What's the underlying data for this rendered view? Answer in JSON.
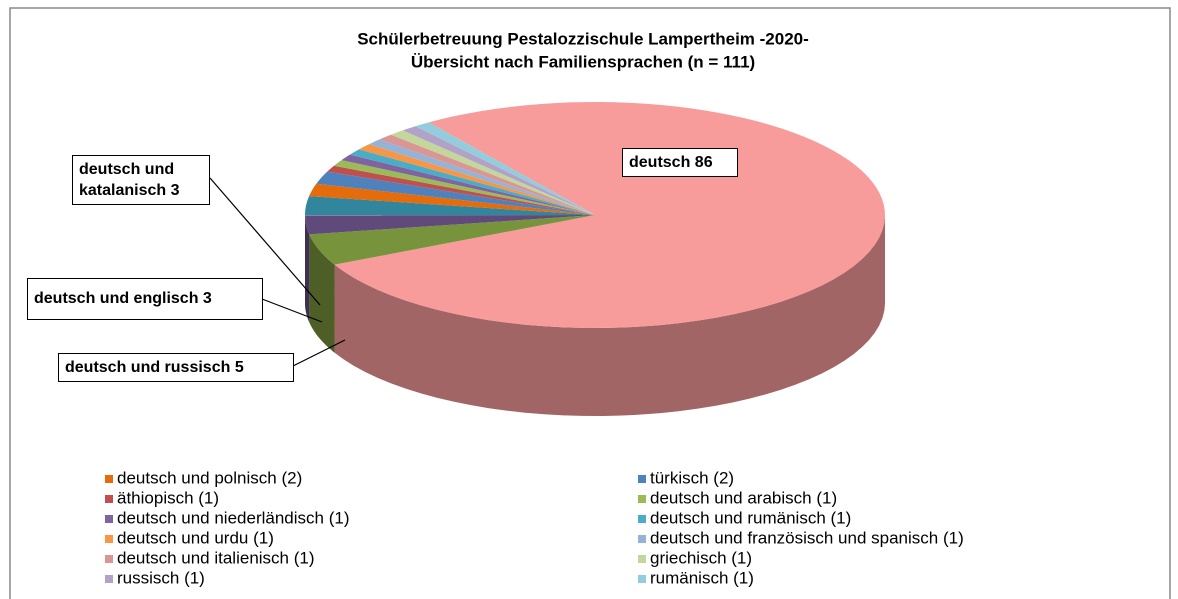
{
  "chart_data": {
    "type": "pie3d",
    "title": "Schülerbetreuung Pestalozzischule Lampertheim -2020-",
    "subtitle": "Übersicht nach Familiensprachen (n = 111)",
    "slices": [
      {
        "label": "deutsch 86",
        "value": 86,
        "color": "#f79b9b"
      },
      {
        "label": "deutsch und russisch 5",
        "value": 5,
        "color": "#77933c"
      },
      {
        "label": "deutsch  und englisch 3",
        "value": 3,
        "color": "#604a7b"
      },
      {
        "label": "deutsch und katalanisch 3",
        "value": 3,
        "color": "#31859c"
      },
      {
        "legend": "deutsch und polnisch (2)",
        "value": 2,
        "color": "#e46c0a"
      },
      {
        "legend": "türkisch (2)",
        "value": 2,
        "color": "#4f81bd"
      },
      {
        "legend": "äthiopisch (1)",
        "value": 1,
        "color": "#c0504d"
      },
      {
        "legend": "deutsch und arabisch (1)",
        "value": 1,
        "color": "#9bbb59"
      },
      {
        "legend": "deutsch und niederländisch (1)",
        "value": 1,
        "color": "#8064a2"
      },
      {
        "legend": "deutsch und rumänisch (1)",
        "value": 1,
        "color": "#4bacc6"
      },
      {
        "legend": "deutsch und urdu (1)",
        "value": 1,
        "color": "#f79646"
      },
      {
        "legend": "deutsch und französisch und spanisch (1)",
        "value": 1,
        "color": "#95b3d7"
      },
      {
        "legend": "deutsch  und italienisch (1)",
        "value": 1,
        "color": "#d99694"
      },
      {
        "legend": "griechisch (1)",
        "value": 1,
        "color": "#c3d69b"
      },
      {
        "legend": "russisch (1)",
        "value": 1,
        "color": "#b3a2c7"
      },
      {
        "legend": "rumänisch (1)",
        "value": 1,
        "color": "#93cddd"
      }
    ]
  }
}
